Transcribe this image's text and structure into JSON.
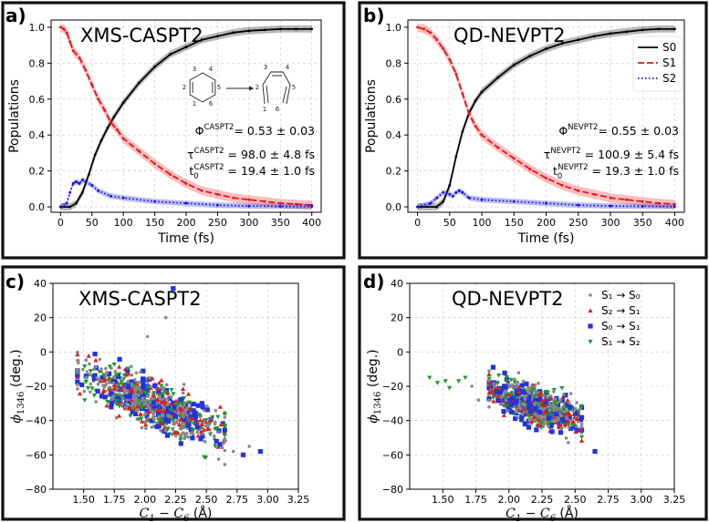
{
  "figure": {
    "panels": [
      "a)",
      "b)",
      "c)",
      "d)"
    ]
  },
  "chart_data": [
    {
      "id": "a",
      "type": "line",
      "panel_label": "a)",
      "title": "XMS-CASPT2",
      "xlabel": "Time (fs)",
      "ylabel": "Populations",
      "xlim": [
        -15,
        415
      ],
      "ylim": [
        -0.03,
        1.04
      ],
      "xticks": [
        0,
        50,
        100,
        150,
        200,
        250,
        300,
        350,
        400
      ],
      "yticks": [
        0.0,
        0.2,
        0.4,
        0.6,
        0.8,
        1.0
      ],
      "ytick_labels": [
        "0.0",
        "0.2",
        "0.4",
        "0.6",
        "0.8",
        "1.0"
      ],
      "grid": true,
      "series": [
        {
          "name": "S0",
          "color": "#000000",
          "style": "solid",
          "band": 0.02,
          "x": [
            0,
            15,
            25,
            35,
            45,
            55,
            65,
            75,
            85,
            100,
            125,
            150,
            175,
            200,
            225,
            250,
            275,
            300,
            325,
            350,
            375,
            400
          ],
          "values": [
            0.0,
            0.0,
            0.02,
            0.08,
            0.18,
            0.29,
            0.37,
            0.44,
            0.5,
            0.58,
            0.69,
            0.78,
            0.85,
            0.89,
            0.93,
            0.95,
            0.97,
            0.98,
            0.985,
            0.99,
            0.99,
            0.99
          ]
        },
        {
          "name": "S1",
          "color": "#e8141a",
          "style": "dashed",
          "band": 0.025,
          "x": [
            0,
            5,
            10,
            15,
            20,
            30,
            40,
            50,
            60,
            70,
            80,
            90,
            100,
            125,
            150,
            175,
            200,
            225,
            250,
            275,
            300,
            325,
            350,
            375,
            400
          ],
          "values": [
            1.0,
            0.99,
            0.97,
            0.92,
            0.87,
            0.83,
            0.76,
            0.68,
            0.6,
            0.54,
            0.47,
            0.43,
            0.38,
            0.31,
            0.24,
            0.18,
            0.13,
            0.09,
            0.07,
            0.05,
            0.04,
            0.03,
            0.02,
            0.015,
            0.01
          ]
        },
        {
          "name": "S2",
          "color": "#1010d8",
          "style": "dotted",
          "band": 0.015,
          "x": [
            0,
            10,
            15,
            20,
            25,
            30,
            35,
            40,
            50,
            60,
            80,
            100,
            150,
            200,
            250,
            300,
            350,
            400
          ],
          "values": [
            0.0,
            0.02,
            0.08,
            0.13,
            0.14,
            0.13,
            0.15,
            0.14,
            0.12,
            0.09,
            0.06,
            0.05,
            0.03,
            0.02,
            0.01,
            0.005,
            0.003,
            0.002
          ]
        }
      ],
      "annotations": [
        {
          "base": "Φ",
          "sup": "CASPT2",
          "text": "= 0.53 ± 0.03"
        },
        {
          "base": "τ",
          "sup": "CASPT2",
          "text": " = 98.0 ± 4.8 fs"
        },
        {
          "base": "t",
          "sup": "CASPT2",
          "sub": "0",
          "text": " = 19.4 ± 1.0 fs"
        }
      ],
      "molecule_numbers": {
        "left": [
          "3",
          "4",
          "2",
          "5",
          "1",
          "6"
        ],
        "right": [
          "3",
          "4",
          "2",
          "5",
          "1",
          "6"
        ]
      }
    },
    {
      "id": "b",
      "type": "line",
      "panel_label": "b)",
      "title": "QD-NEVPT2",
      "xlabel": "Time (fs)",
      "ylabel": "Populations",
      "xlim": [
        -15,
        415
      ],
      "ylim": [
        -0.03,
        1.04
      ],
      "xticks": [
        0,
        50,
        100,
        150,
        200,
        250,
        300,
        350,
        400
      ],
      "yticks": [
        0.0,
        0.2,
        0.4,
        0.6,
        0.8,
        1.0
      ],
      "ytick_labels": [
        "0.0",
        "0.2",
        "0.4",
        "0.6",
        "0.8",
        "1.0"
      ],
      "grid": true,
      "legend": [
        "S0",
        "S1",
        "S2"
      ],
      "series": [
        {
          "name": "S0",
          "color": "#000000",
          "style": "solid",
          "band": 0.02,
          "x": [
            0,
            30,
            40,
            50,
            60,
            70,
            80,
            90,
            100,
            125,
            150,
            175,
            200,
            225,
            250,
            275,
            300,
            325,
            350,
            375,
            400
          ],
          "values": [
            0.0,
            0.0,
            0.03,
            0.12,
            0.28,
            0.42,
            0.52,
            0.59,
            0.64,
            0.72,
            0.79,
            0.84,
            0.88,
            0.91,
            0.93,
            0.95,
            0.965,
            0.975,
            0.985,
            0.99,
            0.99
          ]
        },
        {
          "name": "S1",
          "color": "#e8141a",
          "style": "dashed",
          "band": 0.025,
          "x": [
            0,
            10,
            20,
            30,
            40,
            50,
            60,
            70,
            80,
            90,
            100,
            125,
            150,
            175,
            200,
            225,
            250,
            275,
            300,
            325,
            350,
            375,
            400
          ],
          "values": [
            1.0,
            0.99,
            0.97,
            0.93,
            0.88,
            0.82,
            0.74,
            0.63,
            0.52,
            0.45,
            0.4,
            0.33,
            0.27,
            0.21,
            0.16,
            0.12,
            0.09,
            0.07,
            0.05,
            0.04,
            0.03,
            0.02,
            0.015
          ]
        },
        {
          "name": "S2",
          "color": "#1010d8",
          "style": "dotted",
          "band": 0.015,
          "x": [
            0,
            20,
            30,
            40,
            50,
            55,
            60,
            65,
            70,
            80,
            100,
            150,
            200,
            250,
            300,
            350,
            400
          ],
          "values": [
            0.0,
            0.02,
            0.05,
            0.08,
            0.07,
            0.06,
            0.08,
            0.09,
            0.08,
            0.05,
            0.04,
            0.03,
            0.02,
            0.01,
            0.005,
            0.003,
            0.002
          ]
        }
      ],
      "annotations": [
        {
          "base": "Φ",
          "sup": "NEVPT2",
          "text": "= 0.55 ± 0.03"
        },
        {
          "base": "τ",
          "sup": "NEVPT2",
          "text": " = 100.9 ± 5.4 fs"
        },
        {
          "base": "t",
          "sup": "NEVPT2",
          "sub": "0",
          "text": " = 19.3 ± 1.0 fs"
        }
      ]
    },
    {
      "id": "c",
      "type": "scatter",
      "panel_label": "c)",
      "title": "XMS-CASPT2",
      "xlabel_main": "C",
      "xlabel_sub1": "1",
      "xlabel_mid": " − ",
      "xlabel_main2": "C",
      "xlabel_sub2": "6",
      "xlabel_unit": " (Å)",
      "ylabel_main": "ϕ",
      "ylabel_sub": "1346",
      "ylabel_unit": " (deg.)",
      "xlim": [
        1.25,
        3.25
      ],
      "ylim": [
        -80,
        40
      ],
      "xticks": [
        1.5,
        1.75,
        2.0,
        2.25,
        2.5,
        2.75,
        3.0,
        3.25
      ],
      "xtick_labels": [
        "1.50",
        "1.75",
        "2.00",
        "2.25",
        "2.50",
        "2.75",
        "3.00",
        "3.25"
      ],
      "yticks": [
        -80,
        -60,
        -40,
        -20,
        0,
        20,
        40
      ],
      "ytick_labels": [
        "−80",
        "−60",
        "−40",
        "−20",
        "0",
        "20",
        "40"
      ],
      "grid": true,
      "cloud": {
        "x_range": [
          1.45,
          2.65
        ],
        "y_at_xmin": -12,
        "y_at_xmax": -48,
        "spread": 11,
        "seed": 7
      },
      "series": [
        {
          "name": "S₁ → S₀",
          "color": "#888888",
          "marker": "circle",
          "count": 420
        },
        {
          "name": "S₂ → S₁",
          "color": "#e31a1c",
          "marker": "triangle-up",
          "count": 160
        },
        {
          "name": "S₀ → S₁",
          "color": "#2233dd",
          "marker": "square",
          "count": 150
        },
        {
          "name": "S₁ → S₂",
          "color": "#1a9a2a",
          "marker": "triangle-down",
          "count": 160
        }
      ],
      "outliers": [
        {
          "series": 2,
          "x": 2.23,
          "y": 37
        },
        {
          "series": 0,
          "x": 2.17,
          "y": 20
        },
        {
          "series": 0,
          "x": 2.02,
          "y": 9
        },
        {
          "series": 2,
          "x": 2.94,
          "y": -58
        },
        {
          "series": 2,
          "x": 2.8,
          "y": -60
        },
        {
          "series": 0,
          "x": 2.85,
          "y": -55
        },
        {
          "series": 0,
          "x": 2.72,
          "y": -58
        }
      ]
    },
    {
      "id": "d",
      "type": "scatter",
      "panel_label": "d)",
      "title": "QD-NEVPT2",
      "xlabel_main": "C",
      "xlabel_sub1": "1",
      "xlabel_mid": " − ",
      "xlabel_main2": "C",
      "xlabel_sub2": "6",
      "xlabel_unit": " (Å)",
      "ylabel_main": "ϕ",
      "ylabel_sub": "1346",
      "ylabel_unit": " (deg.)",
      "xlim": [
        1.25,
        3.25
      ],
      "ylim": [
        -80,
        40
      ],
      "xticks": [
        1.5,
        1.75,
        2.0,
        2.25,
        2.5,
        2.75,
        3.0,
        3.25
      ],
      "xtick_labels": [
        "1.50",
        "1.75",
        "2.00",
        "2.25",
        "2.50",
        "2.75",
        "3.00",
        "3.25"
      ],
      "yticks": [
        -80,
        -60,
        -40,
        -20,
        0,
        20,
        40
      ],
      "ytick_labels": [
        "−80",
        "−60",
        "−40",
        "−20",
        "0",
        "20",
        "40"
      ],
      "grid": true,
      "legend": [
        "S₁ → S₀",
        "S₂ → S₁",
        "S₀ → S₁",
        "S₁ → S₂"
      ],
      "cloud": {
        "x_range": [
          1.85,
          2.55
        ],
        "y_at_xmin": -22,
        "y_at_xmax": -40,
        "spread": 9,
        "seed": 19
      },
      "series": [
        {
          "name": "S₁ → S₀",
          "color": "#888888",
          "marker": "circle",
          "count": 380
        },
        {
          "name": "S₂ → S₁",
          "color": "#e31a1c",
          "marker": "triangle-up",
          "count": 150
        },
        {
          "name": "S₀ → S₁",
          "color": "#2233dd",
          "marker": "square",
          "count": 170
        },
        {
          "name": "S₁ → S₂",
          "color": "#1a9a2a",
          "marker": "triangle-down",
          "count": 170
        }
      ],
      "outliers": [
        {
          "series": 3,
          "x": 1.4,
          "y": -15
        },
        {
          "series": 3,
          "x": 1.46,
          "y": -18
        },
        {
          "series": 3,
          "x": 1.52,
          "y": -17
        },
        {
          "series": 3,
          "x": 1.55,
          "y": -21
        },
        {
          "series": 3,
          "x": 1.62,
          "y": -17
        },
        {
          "series": 3,
          "x": 1.67,
          "y": -15
        },
        {
          "series": 0,
          "x": 1.72,
          "y": -20
        },
        {
          "series": 2,
          "x": 2.65,
          "y": -58
        },
        {
          "series": 0,
          "x": 1.77,
          "y": -28
        }
      ]
    }
  ]
}
